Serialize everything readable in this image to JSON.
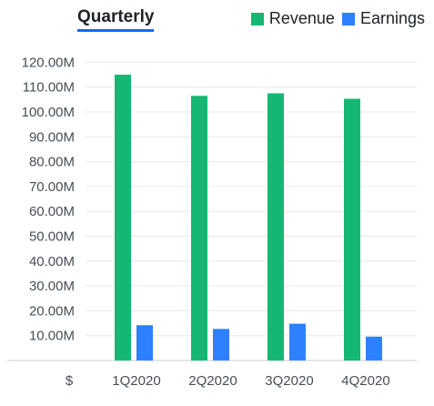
{
  "tab": {
    "label": "Quarterly"
  },
  "legend": {
    "revenue_label": "Revenue",
    "earnings_label": "Earnings"
  },
  "colors": {
    "revenue": "#14b872",
    "earnings": "#2f80ff",
    "grid": "#e6e9ec",
    "accent": "#0f69ff"
  },
  "chart_data": {
    "type": "bar",
    "categories": [
      "1Q2020",
      "2Q2020",
      "3Q2020",
      "4Q2020"
    ],
    "series": [
      {
        "name": "Revenue",
        "values": [
          115.0,
          106.5,
          107.5,
          105.3
        ]
      },
      {
        "name": "Earnings",
        "values": [
          14.2,
          12.7,
          14.8,
          9.6
        ]
      }
    ],
    "y_tick_labels": [
      "10.00M",
      "20.00M",
      "30.00M",
      "40.00M",
      "50.00M",
      "60.00M",
      "70.00M",
      "80.00M",
      "90.00M",
      "100.00M",
      "110.00M",
      "120.00M"
    ],
    "y_ticks": [
      10,
      20,
      30,
      40,
      50,
      60,
      70,
      80,
      90,
      100,
      110,
      120
    ],
    "ylim": [
      0,
      120
    ],
    "unit_label": "$",
    "grid": true,
    "legend_position": "top-right"
  }
}
